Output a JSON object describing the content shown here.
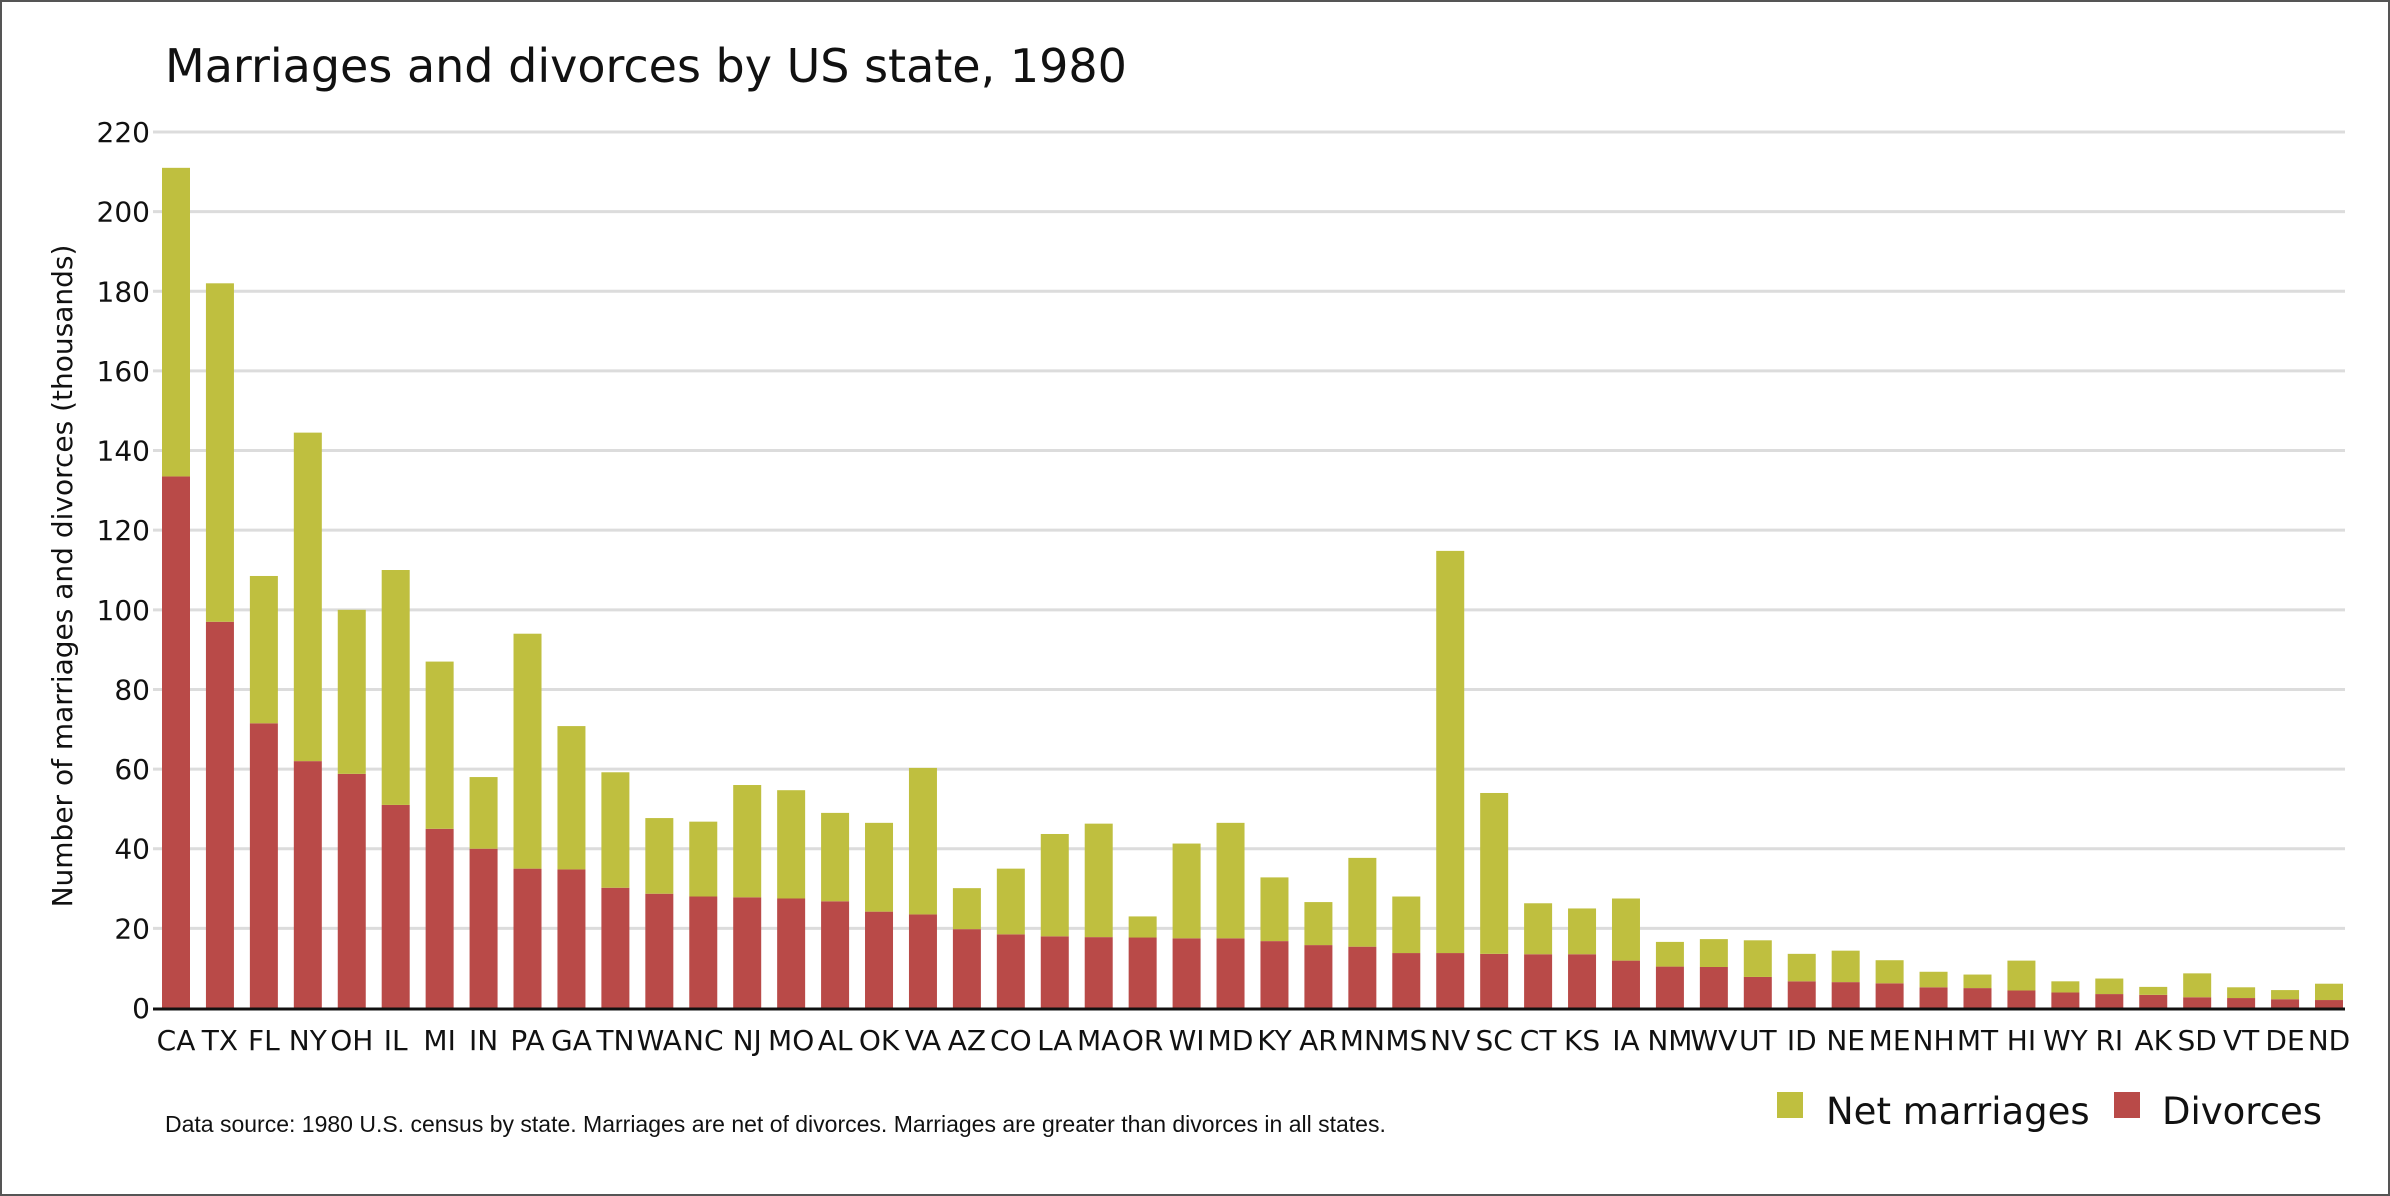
{
  "chart_data": {
    "type": "bar",
    "stacked": true,
    "title": "Marriages and divorces by US state, 1980",
    "ylabel": "Number of marriages and divorces (thousands)",
    "xlabel": "",
    "ylim": [
      0,
      220
    ],
    "yticks": [
      0,
      20,
      40,
      60,
      80,
      100,
      120,
      140,
      160,
      180,
      200,
      220
    ],
    "grid": true,
    "legend_position": "bottom-right",
    "categories": [
      "CA",
      "TX",
      "FL",
      "NY",
      "OH",
      "IL",
      "MI",
      "IN",
      "PA",
      "GA",
      "TN",
      "WA",
      "NC",
      "NJ",
      "MO",
      "AL",
      "OK",
      "VA",
      "AZ",
      "CO",
      "LA",
      "MA",
      "OR",
      "WI",
      "MD",
      "KY",
      "AR",
      "MN",
      "MS",
      "NV",
      "SC",
      "CT",
      "KS",
      "IA",
      "NM",
      "WV",
      "UT",
      "ID",
      "NE",
      "ME",
      "NH",
      "MT",
      "HI",
      "WY",
      "RI",
      "AK",
      "SD",
      "VT",
      "DE",
      "ND"
    ],
    "series": [
      {
        "name": "Divorces",
        "color": "#b94a48",
        "values": [
          133.5,
          97,
          71.5,
          62,
          58.8,
          51,
          45,
          40,
          35,
          34.8,
          30.2,
          28.7,
          28,
          27.8,
          27.5,
          26.8,
          24.2,
          23.5,
          19.8,
          18.5,
          18,
          17.8,
          17.7,
          17.5,
          17.5,
          16.8,
          15.8,
          15.4,
          13.8,
          13.8,
          13.6,
          13.5,
          13.5,
          11.9,
          10.4,
          10.3,
          7.8,
          6.7,
          6.5,
          6.2,
          5.2,
          5,
          4.4,
          3.9,
          3.5,
          3.3,
          2.7,
          2.5,
          2.2,
          2
        ]
      },
      {
        "name": "Net marriages",
        "color": "#bfbf3f",
        "values": [
          77.5,
          85,
          37,
          82.5,
          41.2,
          59,
          42,
          18,
          59,
          36,
          29,
          19,
          18.8,
          28.2,
          27.2,
          22.2,
          22.3,
          36.8,
          10.3,
          16.5,
          25.7,
          28.5,
          5.3,
          23.8,
          29,
          16,
          10.8,
          22.3,
          14.2,
          101,
          40.4,
          12.8,
          11.5,
          15.6,
          6.2,
          7,
          9.2,
          6.9,
          7.9,
          5.8,
          3.9,
          3.4,
          7.5,
          2.8,
          3.9,
          2,
          6,
          2.7,
          2.3,
          4.1
        ]
      }
    ],
    "note": "Data source: 1980 U.S. census by state. Marriages are net of divorces. Marriages are greater than divorces in all states."
  },
  "legend": {
    "items": [
      {
        "label": "Net marriages",
        "color": "#bfbf3f"
      },
      {
        "label": "Divorces",
        "color": "#b94a48"
      }
    ]
  }
}
